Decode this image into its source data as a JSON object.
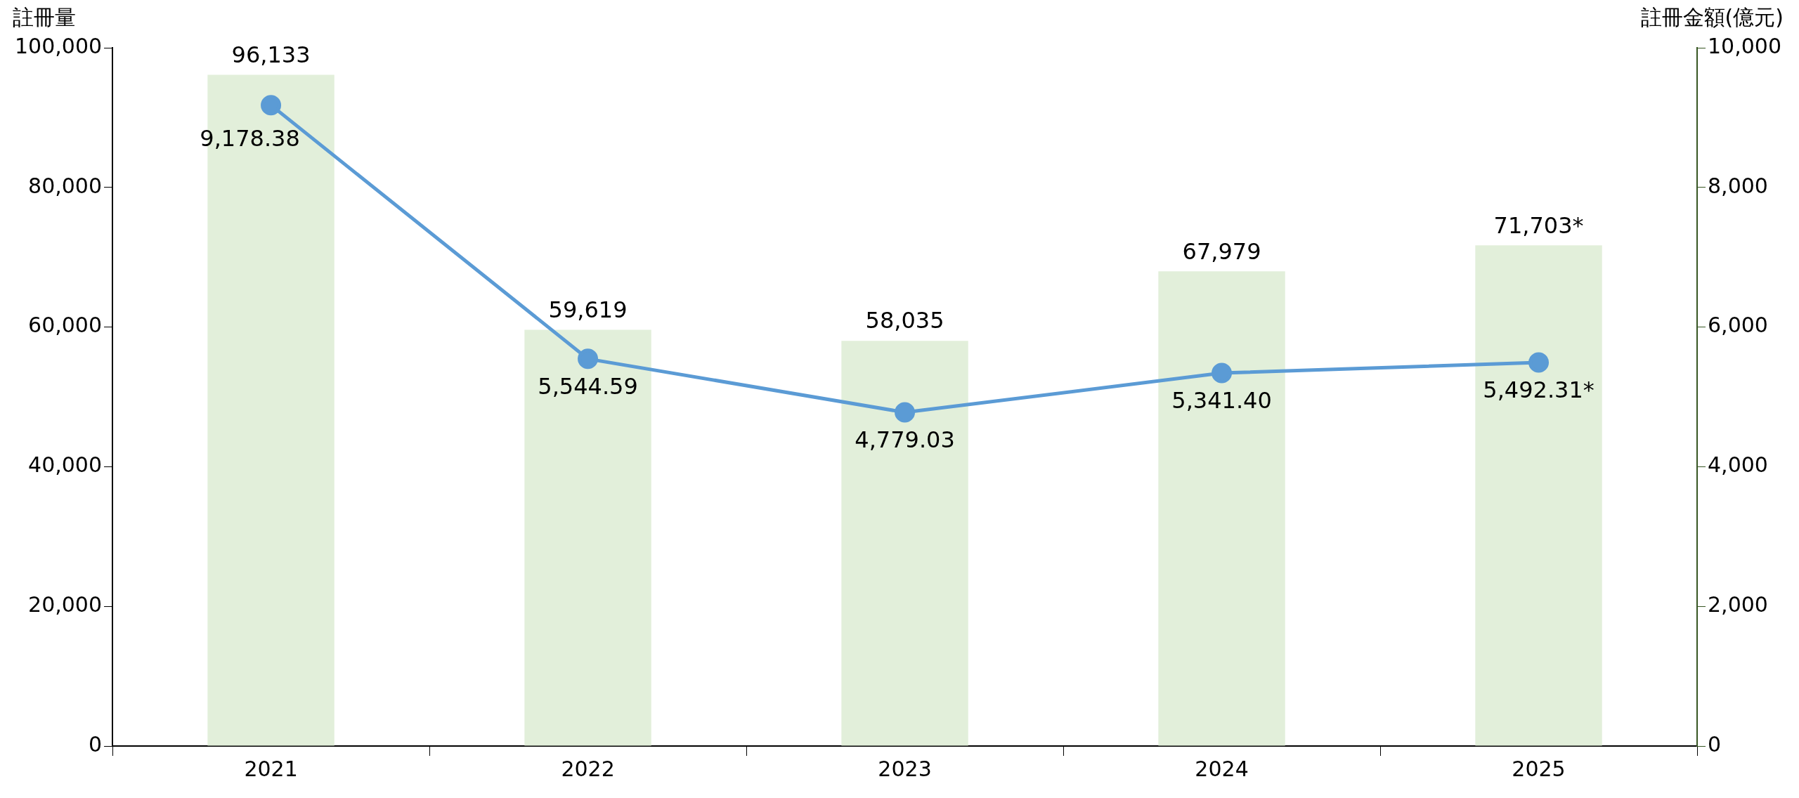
{
  "chart_data": {
    "type": "bar",
    "ylabel": "註冊量",
    "y2label": "註冊金額(億元)",
    "categories": [
      "2021",
      "2022",
      "2023",
      "2024",
      "2025"
    ],
    "series": [
      {
        "color": "#e2efda",
        "values": [
          96133,
          59619,
          58035,
          67979,
          71703
        ],
        "value_labels": [
          "96,133",
          "59,619",
          "58,035",
          "67,979",
          "71,703*"
        ]
      },
      {
        "type": "line",
        "axis": "y2",
        "color": "#5b9bd5",
        "marker": "circle",
        "values": [
          9178.38,
          5544.59,
          4779.03,
          5341.4,
          5492.31
        ],
        "value_labels": [
          "9,178.38",
          "5,544.59",
          "4,779.03",
          "5,341.40",
          "5,492.31*"
        ]
      }
    ],
    "ylim": [
      0,
      100000
    ],
    "yticks": [
      {
        "value": 0,
        "label": "0"
      },
      {
        "value": 20000,
        "label": "20,000"
      },
      {
        "value": 40000,
        "label": "40,000"
      },
      {
        "value": 60000,
        "label": "60,000"
      },
      {
        "value": 80000,
        "label": "80,000"
      },
      {
        "value": 100000,
        "label": "100,000"
      }
    ],
    "y2lim": [
      0,
      10000
    ],
    "y2ticks": [
      {
        "value": 0,
        "label": "0"
      },
      {
        "value": 2000,
        "label": "2,000"
      },
      {
        "value": 4000,
        "label": "4,000"
      },
      {
        "value": 6000,
        "label": "6,000"
      },
      {
        "value": 8000,
        "label": "8,000"
      },
      {
        "value": 10000,
        "label": "10,000"
      }
    ],
    "grid": false,
    "legend": false
  }
}
